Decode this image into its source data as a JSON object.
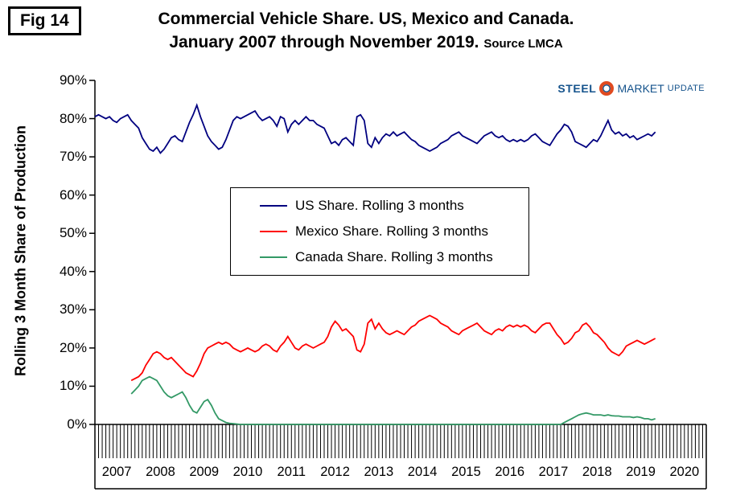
{
  "fig_label": "Fig 14",
  "title": {
    "line1": "Commercial Vehicle Share. US, Mexico and Canada.",
    "line2": "January 2007 through November 2019.",
    "source": "Source LMCA"
  },
  "logo": {
    "steel": "STEEL",
    "market": "MARKET",
    "update": "UPDATE",
    "accent_red": "#E04A1F",
    "accent_blue": "#15538C"
  },
  "chart_data": {
    "type": "line",
    "title": "Commercial Vehicle Share. US, Mexico and Canada. January 2007 through November 2019",
    "ylabel": "Rolling 3 Month Share of Production",
    "ylim": [
      0,
      90
    ],
    "grid": false,
    "legend_position": "center",
    "y_tick_labels": [
      "0%",
      "10%",
      "20%",
      "30%",
      "40%",
      "50%",
      "60%",
      "70%",
      "80%",
      "90%"
    ],
    "x_axis": {
      "start_year": 2007,
      "end_year": 2021,
      "monthly_ticks": true,
      "year_labels": [
        "2007",
        "2008",
        "2009",
        "2010",
        "2011",
        "2012",
        "2013",
        "2014",
        "2015",
        "2016",
        "2017",
        "2018",
        "2019",
        "2020"
      ]
    },
    "series": [
      {
        "name": "US Share. Rolling 3 months",
        "color": "#000080",
        "start": "2007-01",
        "monthly_values": [
          80.5,
          81,
          80.5,
          80,
          80.5,
          79.5,
          79,
          80,
          80.5,
          81,
          79.5,
          78.5,
          77.5,
          75,
          73.5,
          72,
          71.5,
          72.5,
          71,
          72,
          73.5,
          75,
          75.5,
          74.5,
          74,
          76.5,
          79,
          81,
          83.5,
          80.5,
          78,
          75.5,
          74,
          73,
          72,
          72.5,
          74.5,
          77,
          79.5,
          80.5,
          80,
          80.5,
          81,
          81.5,
          82,
          80.5,
          79.5,
          80,
          80.5,
          79.5,
          78,
          80.5,
          80,
          76.5,
          78.5,
          79.5,
          78.5,
          79.5,
          80.5,
          79.5,
          79.5,
          78.5,
          78,
          77.5,
          75.5,
          73.5,
          74,
          73,
          74.5,
          75,
          74,
          73,
          80.5,
          81,
          79.5,
          73.5,
          72.5,
          75,
          73.5,
          75,
          76,
          75.5,
          76.5,
          75.5,
          76,
          76.5,
          75.5,
          74.5,
          74,
          73,
          72.5,
          72,
          71.5,
          72,
          72.5,
          73.5,
          74,
          74.5,
          75.5,
          76,
          76.5,
          75.5,
          75,
          74.5,
          74,
          73.5,
          74.5,
          75.5,
          76,
          76.5,
          75.5,
          75,
          75.5,
          74.5,
          74,
          74.5,
          74,
          74.5,
          74,
          74.5,
          75.5,
          76,
          75,
          74,
          73.5,
          73,
          74.5,
          76,
          77,
          78.5,
          78,
          76.5,
          74,
          73.5,
          73,
          72.5,
          73.5,
          74.5,
          74,
          75.5,
          77.5,
          79.5,
          77,
          76,
          76.5,
          75.5,
          76,
          75,
          75.5,
          74.5,
          75,
          75.5,
          76,
          75.5,
          76.5
        ]
      },
      {
        "name": "Mexico Share. Rolling 3 months",
        "color": "#FF0000",
        "start": "2007-11",
        "monthly_values": [
          11.5,
          12,
          12.5,
          13.5,
          15.5,
          17,
          18.5,
          19,
          18.5,
          17.5,
          17,
          17.5,
          16.5,
          15.5,
          14.5,
          13.5,
          13,
          12.5,
          14,
          16,
          18.5,
          20,
          20.5,
          21,
          21.5,
          21,
          21.5,
          21,
          20,
          19.5,
          19,
          19.5,
          20,
          19.5,
          19,
          19.5,
          20.5,
          21,
          20.5,
          19.5,
          19,
          20.5,
          21.5,
          23,
          21.5,
          20,
          19.5,
          20.5,
          21,
          20.5,
          20,
          20.5,
          21,
          21.5,
          23,
          25.5,
          27,
          26,
          24.5,
          25,
          24,
          23,
          19.5,
          19,
          21,
          26.5,
          27.5,
          25,
          26.5,
          25,
          24,
          23.5,
          24,
          24.5,
          24,
          23.5,
          24.5,
          25.5,
          26,
          27,
          27.5,
          28,
          28.5,
          28,
          27.5,
          26.5,
          26,
          25.5,
          24.5,
          24,
          23.5,
          24.5,
          25,
          25.5,
          26,
          26.5,
          25.5,
          24.5,
          24,
          23.5,
          24.5,
          25,
          24.5,
          25.5,
          26,
          25.5,
          26,
          25.5,
          26,
          25.5,
          24.5,
          24,
          25,
          26,
          26.5,
          26.5,
          25,
          23.5,
          22.5,
          21,
          21.5,
          22.5,
          24,
          24.5,
          26,
          26.5,
          25.5,
          24,
          23.5,
          22.5,
          21.5,
          20,
          19,
          18.5,
          18,
          19,
          20.5,
          21,
          21.5,
          22,
          21.5,
          21,
          21.5,
          22,
          22.5
        ]
      },
      {
        "name": "Canada Share. Rolling 3 months",
        "color": "#339966",
        "start": "2007-11",
        "monthly_values": [
          8,
          9,
          10,
          11.5,
          12,
          12.5,
          12,
          11.5,
          10,
          8.5,
          7.5,
          7,
          7.5,
          8,
          8.5,
          7,
          5,
          3.5,
          3,
          4.5,
          6,
          6.5,
          5,
          3,
          1.5,
          1,
          0.5,
          0.3,
          0.2,
          0.1,
          0,
          0,
          0,
          0,
          0,
          0,
          0,
          0,
          0,
          0,
          0,
          0,
          0,
          0,
          0,
          0,
          0,
          0,
          0,
          0,
          0,
          0,
          0,
          0,
          0,
          0,
          0,
          0,
          0,
          0,
          0,
          0,
          0,
          0,
          0,
          0,
          0,
          0,
          0,
          0,
          0,
          0,
          0,
          0,
          0,
          0,
          0,
          0,
          0,
          0,
          0,
          0,
          0,
          0,
          0,
          0,
          0,
          0,
          0,
          0,
          0,
          0,
          0,
          0,
          0,
          0,
          0,
          0,
          0,
          0,
          0,
          0,
          0,
          0,
          0,
          0,
          0,
          0,
          0,
          0,
          0,
          0,
          0,
          0,
          0,
          0,
          0,
          0,
          0,
          0.5,
          1,
          1.5,
          2,
          2.5,
          2.8,
          3,
          2.8,
          2.5,
          2.5,
          2.5,
          2.3,
          2.5,
          2.3,
          2.2,
          2.2,
          2,
          2,
          2,
          1.8,
          2,
          1.8,
          1.5,
          1.5,
          1.2,
          1.5
        ]
      }
    ]
  }
}
